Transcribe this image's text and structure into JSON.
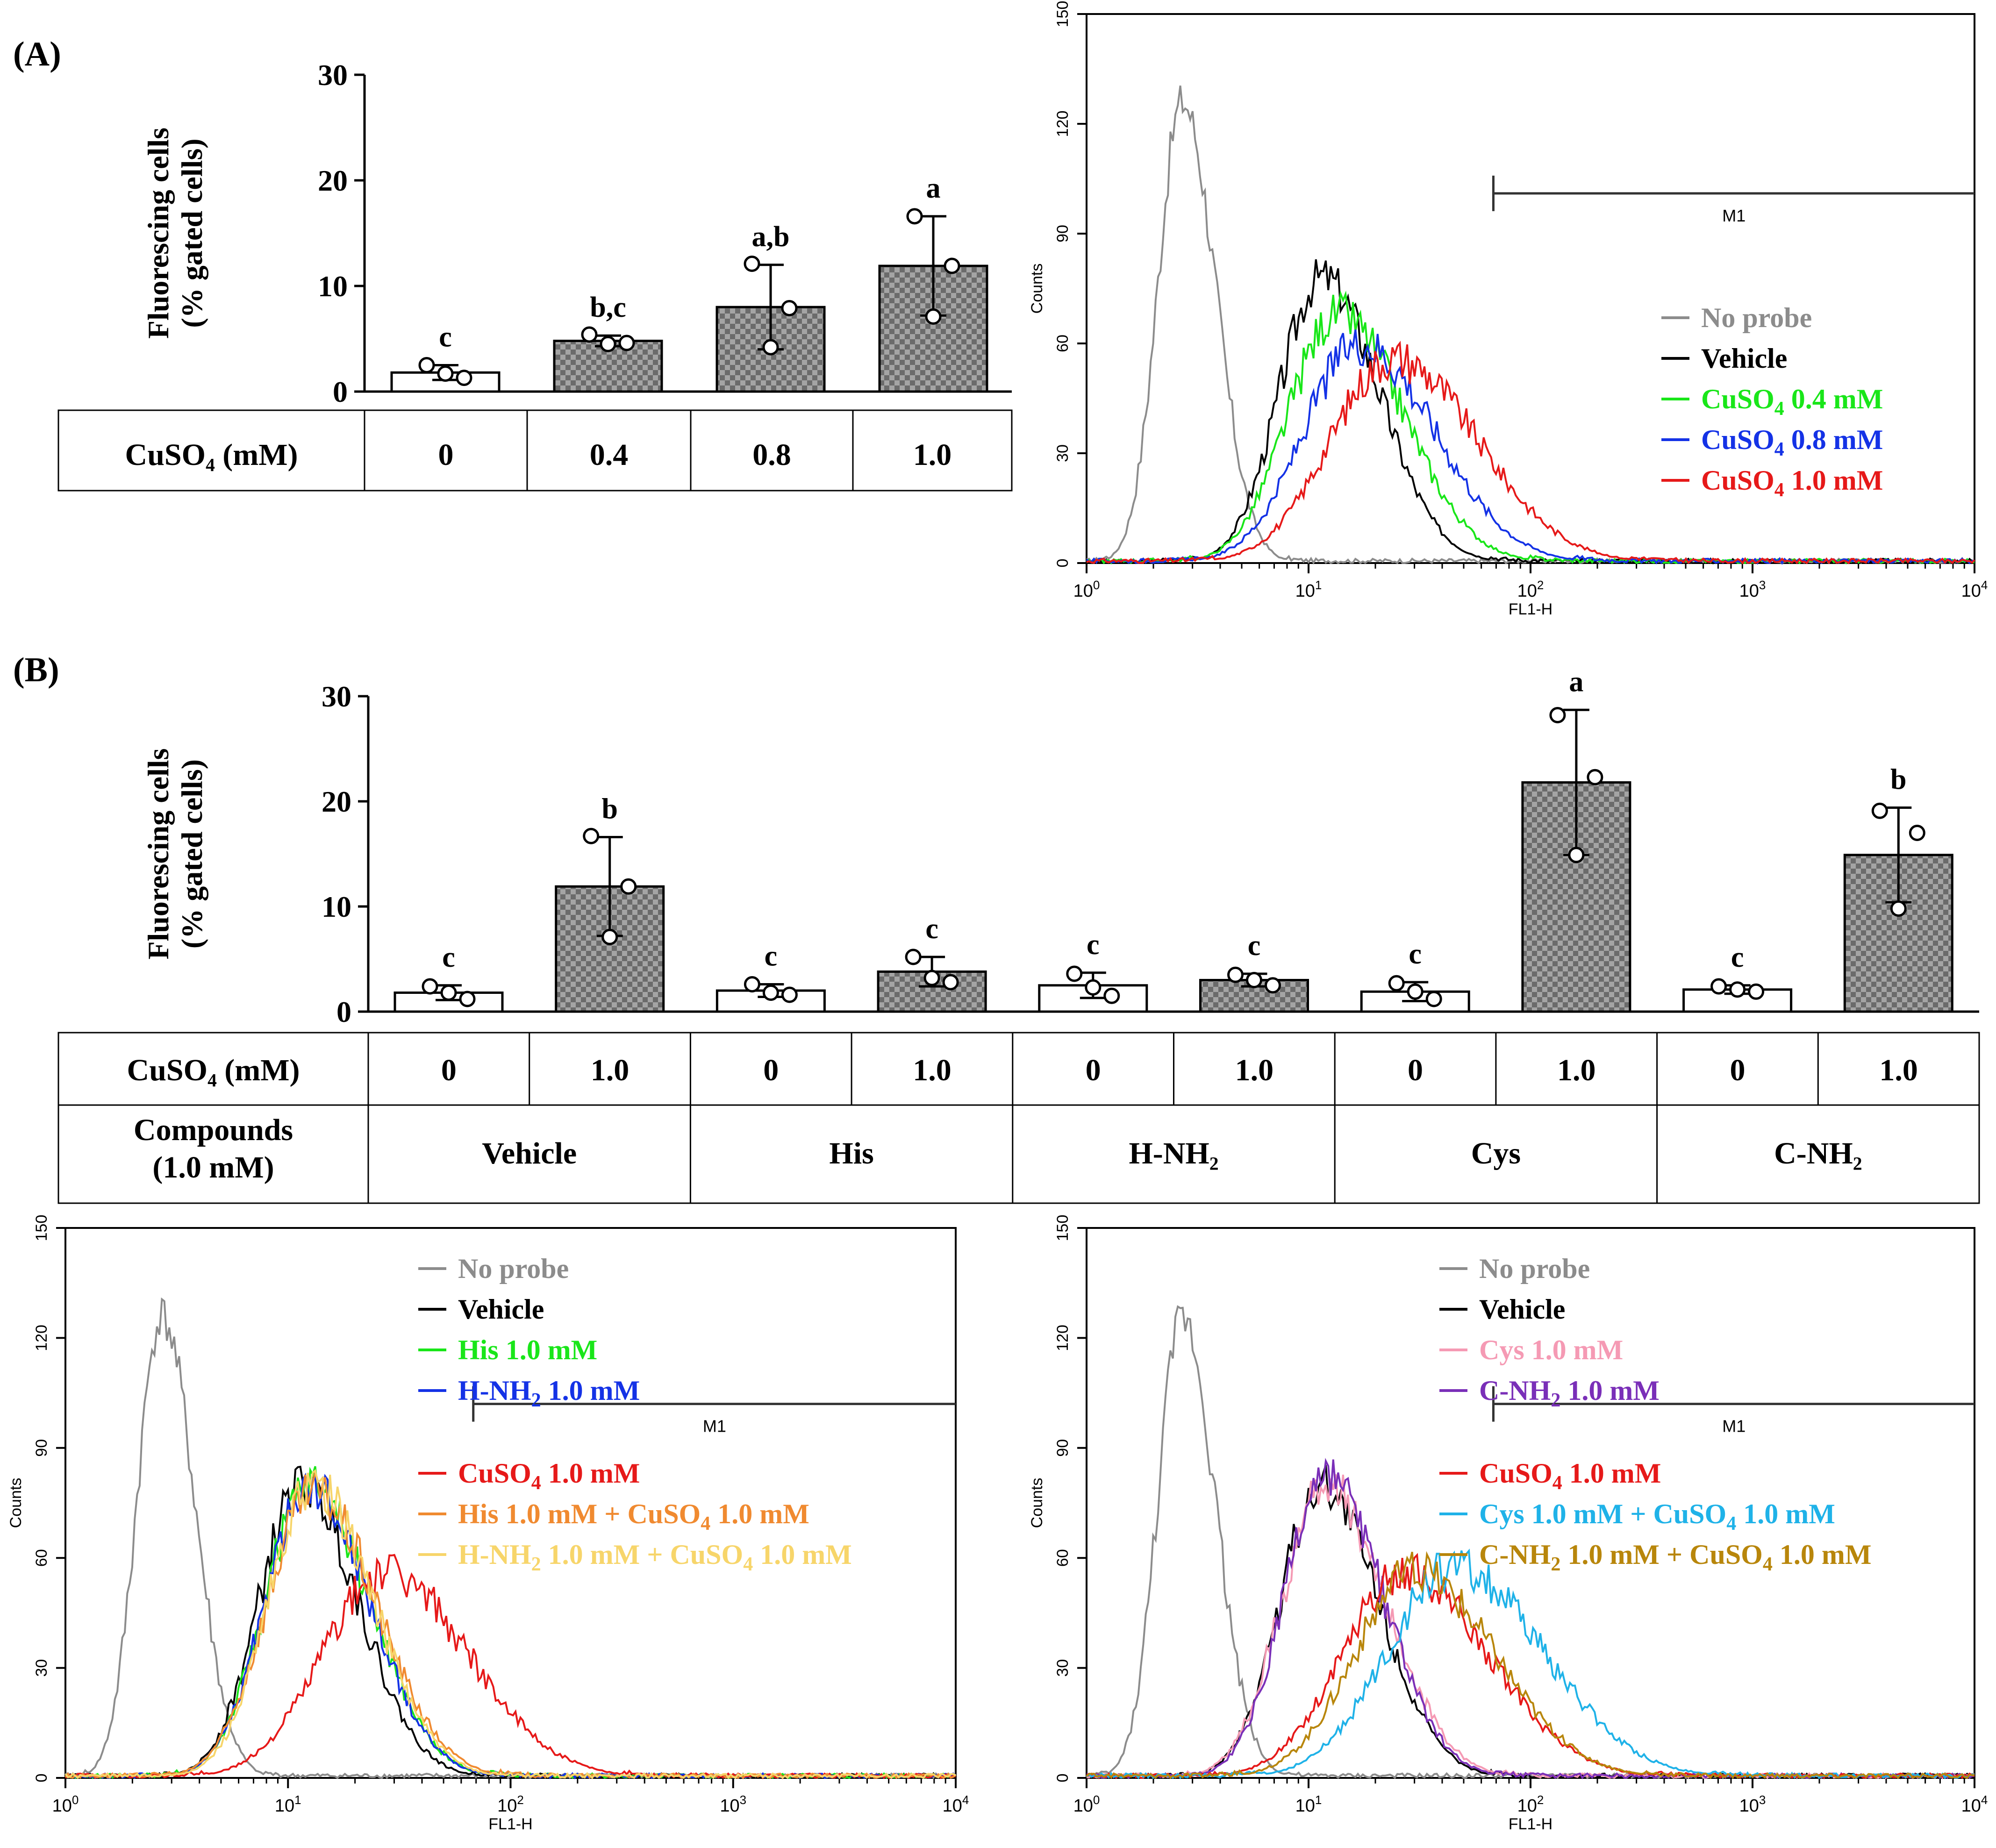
{
  "panel_labels": {
    "a": "(A)",
    "b": "(B)"
  },
  "colors": {
    "no_probe": "#8c8c8c",
    "vehicle": "#000000",
    "green": "#19e619",
    "blue": "#1432e6",
    "red": "#e61919",
    "orange": "#f08a30",
    "yellow": "#f7d56a",
    "pink": "#f59ab4",
    "purple": "#7a2fb8",
    "cyan": "#1fb2e8",
    "gold": "#b8860b",
    "bar_fill": "#6b6b6b"
  },
  "chart_data": [
    {
      "id": "bar_A",
      "type": "bar",
      "ylabel_line1": "Fluorescing cells",
      "ylabel_line2": "(% gated cells)",
      "ylim": [
        0,
        30
      ],
      "yticks": [
        "0",
        "10",
        "20",
        "30"
      ],
      "row_header": "CuSO₄ (mM)",
      "categories": [
        "0",
        "0.4",
        "0.8",
        "1.0"
      ],
      "values": [
        1.8,
        4.8,
        8.0,
        11.9
      ],
      "errors": [
        0.7,
        0.5,
        4.0,
        4.7
      ],
      "points": [
        [
          2.5,
          1.3,
          1.7
        ],
        [
          5.4,
          4.6,
          4.5
        ],
        [
          12.1,
          7.9,
          4.2
        ],
        [
          16.6,
          11.9,
          7.1
        ]
      ],
      "patterned": [
        false,
        true,
        true,
        true
      ],
      "significance": [
        "c",
        "b,c",
        "a,b",
        "a"
      ]
    },
    {
      "id": "hist_A",
      "type": "line",
      "xlabel": "FL1-H",
      "ylabel": "Counts",
      "xscale": "log",
      "xlim": [
        1,
        10000
      ],
      "ylim": [
        0,
        150
      ],
      "yticks": [
        "0",
        "30",
        "60",
        "90",
        "120",
        "150"
      ],
      "xticks": [
        "10",
        "10",
        "10",
        "10",
        "10"
      ],
      "xtick_exponents": [
        "0",
        "1",
        "2",
        "3",
        "4"
      ],
      "gate": {
        "label": "M1",
        "from": 68,
        "to": 10000,
        "level": 101
      },
      "series": [
        {
          "name": "No probe",
          "sub": "",
          "tail": "",
          "color_key": "no_probe",
          "peak_x": 2.7,
          "peak_y": 126,
          "sigma": 0.11
        },
        {
          "name": "Vehicle",
          "sub": "",
          "tail": "",
          "color_key": "vehicle",
          "peak_x": 11.5,
          "peak_y": 78,
          "sigma": 0.19
        },
        {
          "name": "CuSO",
          "sub": "4",
          "tail": " 0.4 mM",
          "color_key": "green",
          "peak_x": 13.5,
          "peak_y": 68,
          "sigma": 0.22
        },
        {
          "name": "CuSO",
          "sub": "4",
          "tail": " 0.8 mM",
          "color_key": "blue",
          "peak_x": 17.0,
          "peak_y": 60,
          "sigma": 0.25
        },
        {
          "name": "CuSO",
          "sub": "4",
          "tail": " 1.0 mM",
          "color_key": "red",
          "peak_x": 24.0,
          "peak_y": 56,
          "sigma": 0.28
        }
      ]
    },
    {
      "id": "bar_B",
      "type": "bar",
      "ylabel_line1": "Fluorescing cells",
      "ylabel_line2": "(% gated cells)",
      "ylim": [
        0,
        30
      ],
      "yticks": [
        "0",
        "10",
        "20",
        "30"
      ],
      "row_header": "CuSO₄ (mM)",
      "row2_header_line1": "Compounds",
      "row2_header_line2": "(1.0 mM)",
      "categories": [
        "0",
        "1.0",
        "0",
        "1.0",
        "0",
        "1.0",
        "0",
        "1.0",
        "0",
        "1.0"
      ],
      "groups": [
        "Vehicle",
        "His",
        "H-NH₂",
        "Cys",
        "C-NH₂"
      ],
      "values": [
        1.8,
        11.9,
        2.0,
        3.8,
        2.5,
        3.0,
        1.9,
        21.8,
        2.1,
        14.9
      ],
      "errors": [
        0.7,
        4.7,
        0.6,
        1.4,
        1.2,
        0.6,
        0.9,
        6.9,
        0.4,
        4.5
      ],
      "points": [
        [
          2.4,
          1.2,
          1.8
        ],
        [
          16.7,
          11.9,
          7.1
        ],
        [
          2.6,
          1.6,
          1.8
        ],
        [
          5.2,
          2.8,
          3.2
        ],
        [
          3.6,
          1.5,
          2.3
        ],
        [
          3.5,
          2.5,
          3.0
        ],
        [
          2.7,
          1.2,
          1.9
        ],
        [
          28.2,
          22.3,
          14.9
        ],
        [
          2.4,
          1.9,
          2.1
        ],
        [
          19.1,
          17.0,
          9.8
        ]
      ],
      "patterned": [
        false,
        true,
        false,
        true,
        false,
        true,
        false,
        true,
        false,
        true
      ],
      "significance": [
        "c",
        "b",
        "c",
        "c",
        "c",
        "c",
        "c",
        "a",
        "c",
        "b"
      ]
    },
    {
      "id": "hist_B1",
      "type": "line",
      "xlabel": "FL1-H",
      "ylabel": "Counts",
      "xscale": "log",
      "xlim": [
        1,
        10000
      ],
      "ylim": [
        0,
        150
      ],
      "yticks": [
        "0",
        "30",
        "60",
        "90",
        "120",
        "150"
      ],
      "xticks": [
        "10",
        "10",
        "10",
        "10",
        "10"
      ],
      "xtick_exponents": [
        "0",
        "1",
        "2",
        "3",
        "4"
      ],
      "gate": {
        "label": "M1",
        "from": 68,
        "to": 10000,
        "level": 102
      },
      "series": [
        {
          "name": "No probe",
          "sub": "",
          "tail": "",
          "color_key": "no_probe",
          "peak_x": 2.7,
          "peak_y": 126,
          "sigma": 0.11
        },
        {
          "name": "Vehicle",
          "sub": "",
          "tail": "",
          "color_key": "vehicle",
          "peak_x": 11.5,
          "peak_y": 80,
          "sigma": 0.19
        },
        {
          "name": "His 1.0 mM",
          "sub": "",
          "tail": "",
          "color_key": "green",
          "peak_x": 12.5,
          "peak_y": 80,
          "sigma": 0.2
        },
        {
          "name": "H-NH",
          "sub": "2",
          "tail": " 1.0 mM",
          "color_key": "blue",
          "peak_x": 12.5,
          "peak_y": 79,
          "sigma": 0.2
        },
        {
          "name": "CuSO",
          "sub": "4",
          "tail": " 1.0 mM",
          "color_key": "red",
          "peak_x": 27.0,
          "peak_y": 56,
          "sigma": 0.28
        },
        {
          "name": "His 1.0 mM + CuSO",
          "sub": "4",
          "tail": " 1.0 mM",
          "color_key": "orange",
          "peak_x": 13.0,
          "peak_y": 78,
          "sigma": 0.21
        },
        {
          "name": "H-NH",
          "sub": "2",
          "tail": " 1.0 mM + CuSO",
          "sub2": "4",
          "tail2": " 1.0 mM",
          "color_key": "yellow",
          "peak_x": 13.0,
          "peak_y": 80,
          "sigma": 0.2
        }
      ]
    },
    {
      "id": "hist_B2",
      "type": "line",
      "xlabel": "FL1-H",
      "ylabel": "Counts",
      "xscale": "log",
      "xlim": [
        1,
        10000
      ],
      "ylim": [
        0,
        150
      ],
      "yticks": [
        "0",
        "30",
        "60",
        "90",
        "120",
        "150"
      ],
      "xticks": [
        "10",
        "10",
        "10",
        "10",
        "10"
      ],
      "xtick_exponents": [
        "0",
        "1",
        "2",
        "3",
        "4"
      ],
      "gate": {
        "label": "M1",
        "from": 68,
        "to": 10000,
        "level": 102
      },
      "series": [
        {
          "name": "No probe",
          "sub": "",
          "tail": "",
          "color_key": "no_probe",
          "peak_x": 2.7,
          "peak_y": 126,
          "sigma": 0.11
        },
        {
          "name": "Vehicle",
          "sub": "",
          "tail": "",
          "color_key": "vehicle",
          "peak_x": 11.5,
          "peak_y": 80,
          "sigma": 0.19
        },
        {
          "name": "Cys 1.0 mM",
          "sub": "",
          "tail": "",
          "color_key": "pink",
          "peak_x": 12.0,
          "peak_y": 80,
          "sigma": 0.2
        },
        {
          "name": "C-NH",
          "sub": "2",
          "tail": " 1.0 mM",
          "color_key": "purple",
          "peak_x": 12.0,
          "peak_y": 82,
          "sigma": 0.19
        },
        {
          "name": "CuSO",
          "sub": "4",
          "tail": " 1.0 mM",
          "color_key": "red",
          "peak_x": 27.0,
          "peak_y": 56,
          "sigma": 0.28
        },
        {
          "name": "Cys 1.0 mM + CuSO",
          "sub": "4",
          "tail": " 1.0 mM",
          "color_key": "cyan",
          "peak_x": 45.0,
          "peak_y": 57,
          "sigma": 0.3
        },
        {
          "name": "C-NH",
          "sub": "2",
          "tail": " 1.0 mM + CuSO",
          "sub2": "4",
          "tail2": " 1.0 mM",
          "color_key": "gold",
          "peak_x": 30.0,
          "peak_y": 56,
          "sigma": 0.27
        }
      ]
    }
  ]
}
